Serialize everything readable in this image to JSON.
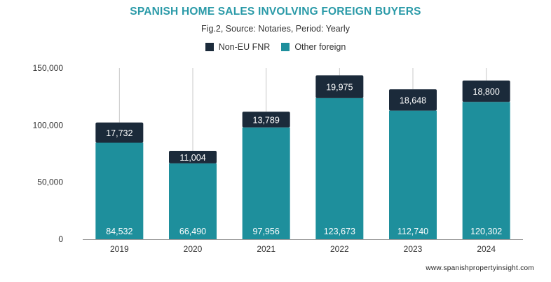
{
  "chart_data": {
    "type": "bar",
    "stacked": true,
    "title": "SPANISH HOME SALES INVOLVING FOREIGN BUYERS",
    "subtitle": "Fig.2, Source: Notaries, Period: Yearly",
    "categories": [
      "2019",
      "2020",
      "2021",
      "2022",
      "2023",
      "2024"
    ],
    "series": [
      {
        "name": "Other foreign",
        "values": [
          84532,
          66490,
          97956,
          123673,
          112740,
          120302
        ],
        "color": "#1e8f9c"
      },
      {
        "name": "Non-EU FNR",
        "values": [
          17732,
          11004,
          13789,
          19975,
          18648,
          18800
        ],
        "color": "#1b2a3a"
      }
    ],
    "value_labels": {
      "Other foreign": [
        "84,532",
        "66,490",
        "97,956",
        "123,673",
        "112,740",
        "120,302"
      ],
      "Non-EU FNR": [
        "17,732",
        "11,004",
        "13,789",
        "19,975",
        "18,648",
        "18,800"
      ]
    },
    "legend_order": [
      "Non-EU FNR",
      "Other foreign"
    ],
    "ylim": [
      0,
      150000
    ],
    "yticks": [
      0,
      50000,
      100000,
      150000
    ],
    "ytick_labels": [
      "0",
      "50,000",
      "100,000",
      "150,000"
    ],
    "grid": false,
    "legend_position": "top-center"
  },
  "footer": {
    "source_site": "www.spanishpropertyinsight.com"
  },
  "colors": {
    "title": "#2a9aa8"
  }
}
